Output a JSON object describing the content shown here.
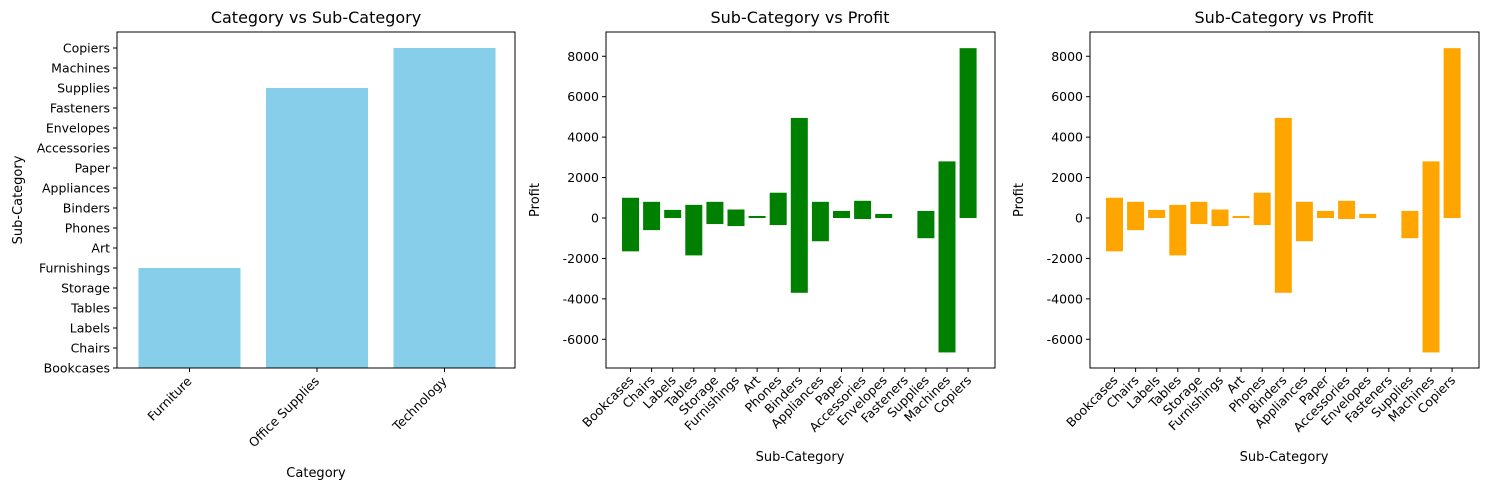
{
  "chart_data": [
    {
      "type": "bar",
      "title": "Category vs Sub-Category",
      "xlabel": "Category",
      "ylabel": "Sub-Category",
      "categories": [
        "Furniture",
        "Office Supplies",
        "Technology"
      ],
      "y_categories": [
        "Bookcases",
        "Chairs",
        "Labels",
        "Tables",
        "Storage",
        "Furnishings",
        "Art",
        "Phones",
        "Binders",
        "Appliances",
        "Paper",
        "Accessories",
        "Envelopes",
        "Fasteners",
        "Supplies",
        "Machines",
        "Copiers"
      ],
      "values": [
        "Furnishings",
        "Supplies",
        "Copiers"
      ],
      "color": "#87ceeb",
      "grid": false
    },
    {
      "type": "bar",
      "title": "Sub-Category vs Profit",
      "xlabel": "Sub-Category",
      "ylabel": "Profit",
      "categories": [
        "Bookcases",
        "Chairs",
        "Labels",
        "Tables",
        "Storage",
        "Furnishings",
        "Art",
        "Phones",
        "Binders",
        "Appliances",
        "Paper",
        "Accessories",
        "Envelopes",
        "Fasteners",
        "Supplies",
        "Machines",
        "Copiers"
      ],
      "ranges": [
        [
          -1650,
          1000
        ],
        [
          -600,
          800
        ],
        [
          0,
          400
        ],
        [
          -1850,
          650
        ],
        [
          -300,
          800
        ],
        [
          -400,
          420
        ],
        [
          0,
          100
        ],
        [
          -350,
          1250
        ],
        [
          -3700,
          4950
        ],
        [
          -1150,
          800
        ],
        [
          0,
          350
        ],
        [
          -50,
          850
        ],
        [
          0,
          200
        ],
        [
          0,
          0
        ],
        [
          -1000,
          350
        ],
        [
          -6650,
          2800
        ],
        [
          0,
          8400
        ]
      ],
      "yticks": [
        -6000,
        -4000,
        -2000,
        0,
        2000,
        4000,
        6000,
        8000
      ],
      "color": "#008000",
      "grid": false
    },
    {
      "type": "bar",
      "title": "Sub-Category vs Profit",
      "xlabel": "Sub-Category",
      "ylabel": "Profit",
      "categories": [
        "Bookcases",
        "Chairs",
        "Labels",
        "Tables",
        "Storage",
        "Furnishings",
        "Art",
        "Phones",
        "Binders",
        "Appliances",
        "Paper",
        "Accessories",
        "Envelopes",
        "Fasteners",
        "Supplies",
        "Machines",
        "Copiers"
      ],
      "ranges": [
        [
          -1650,
          1000
        ],
        [
          -600,
          800
        ],
        [
          0,
          400
        ],
        [
          -1850,
          650
        ],
        [
          -300,
          800
        ],
        [
          -400,
          420
        ],
        [
          0,
          100
        ],
        [
          -350,
          1250
        ],
        [
          -3700,
          4950
        ],
        [
          -1150,
          800
        ],
        [
          0,
          350
        ],
        [
          -50,
          850
        ],
        [
          0,
          200
        ],
        [
          0,
          0
        ],
        [
          -1000,
          350
        ],
        [
          -6650,
          2800
        ],
        [
          0,
          8400
        ]
      ],
      "yticks": [
        -6000,
        -4000,
        -2000,
        0,
        2000,
        4000,
        6000,
        8000
      ],
      "color": "#ffa500",
      "grid": false
    }
  ]
}
